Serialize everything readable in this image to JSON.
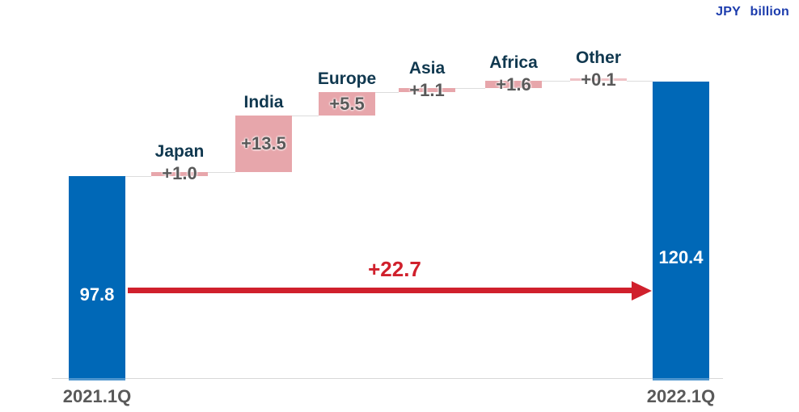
{
  "unit_label": "JPY billion",
  "colors": {
    "bar_blue": "#0068B7",
    "bar_blue_edge": "#4E95CE",
    "bar_pink": "#E7A6AB",
    "bar_pink_light": "#EFC2C6",
    "name_navy": "#10384F",
    "value_gray": "#595959",
    "arrow_red": "#D0202C",
    "unit_blue": "#1C3CAD",
    "line_gray": "#D8D8D8"
  },
  "chart_data": {
    "type": "bar",
    "subtype": "waterfall",
    "title": "",
    "unit": "JPY billion",
    "start": {
      "label": "2021.1Q",
      "value": 97.8,
      "display": "97.8"
    },
    "end": {
      "label": "2022.1Q",
      "value": 120.4,
      "display": "120.4"
    },
    "steps": [
      {
        "label": "Japan",
        "value": 1.0,
        "display": "+1.0"
      },
      {
        "label": "India",
        "value": 13.5,
        "display": "+13.5"
      },
      {
        "label": "Europe",
        "value": 5.5,
        "display": "+5.5"
      },
      {
        "label": "Asia",
        "value": 1.1,
        "display": "+1.1"
      },
      {
        "label": "Africa",
        "value": 1.6,
        "display": "+1.6"
      },
      {
        "label": "Other",
        "value": 0.1,
        "display": "+0.1"
      }
    ],
    "total_change": {
      "value": 22.7,
      "display": "+22.7"
    },
    "axis": {
      "ylim_approx": [
        49.5,
        125
      ],
      "baseline_truncated": true,
      "grid": false,
      "legend": false
    }
  }
}
